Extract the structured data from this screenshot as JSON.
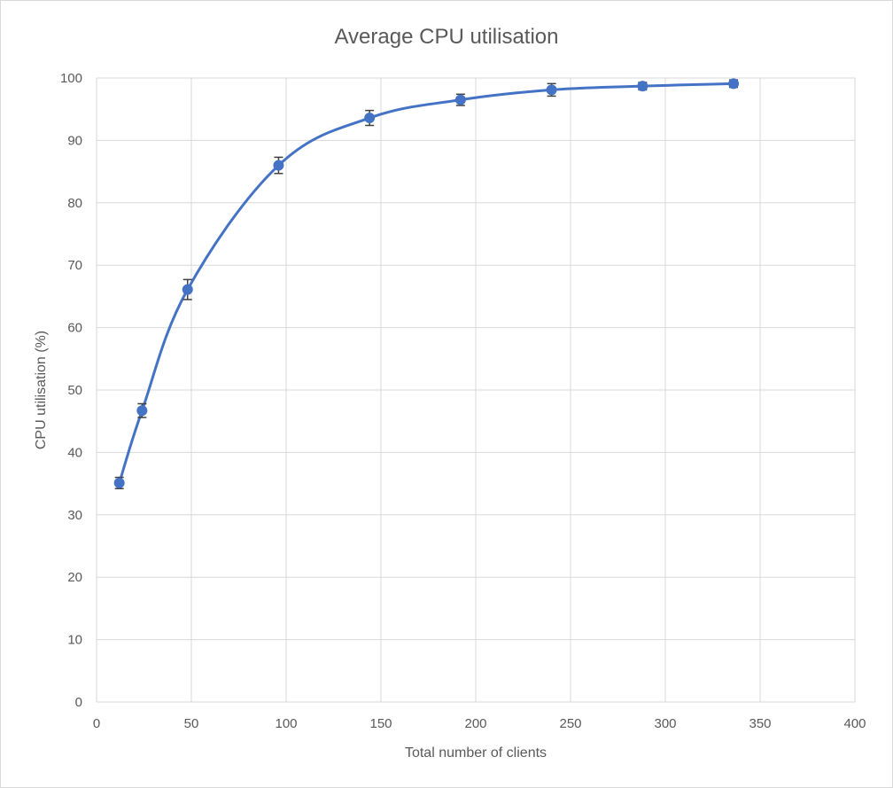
{
  "chart_data": {
    "type": "line",
    "title": "Average CPU utilisation",
    "xlabel": "Total number of clients",
    "ylabel": "CPU utilisation (%)",
    "xlim": [
      0,
      400
    ],
    "ylim": [
      0,
      100
    ],
    "x_ticks": [
      "0",
      "50",
      "100",
      "150",
      "200",
      "250",
      "300",
      "350",
      "400"
    ],
    "y_ticks": [
      "0",
      "10",
      "20",
      "30",
      "40",
      "50",
      "60",
      "70",
      "80",
      "90",
      "100"
    ],
    "grid": true,
    "legend": false,
    "series": [
      {
        "color": "#4472c4",
        "marker": "circle",
        "smooth": true,
        "x": [
          12,
          24,
          48,
          96,
          144,
          192,
          240,
          288,
          336
        ],
        "y": [
          35.1,
          46.7,
          66.1,
          86.0,
          93.6,
          96.5,
          98.1,
          98.7,
          99.1
        ],
        "error": [
          0.9,
          1.1,
          1.6,
          1.3,
          1.2,
          0.9,
          1.0,
          0.6,
          0.6
        ]
      }
    ],
    "errorbar_color": "#404040"
  }
}
